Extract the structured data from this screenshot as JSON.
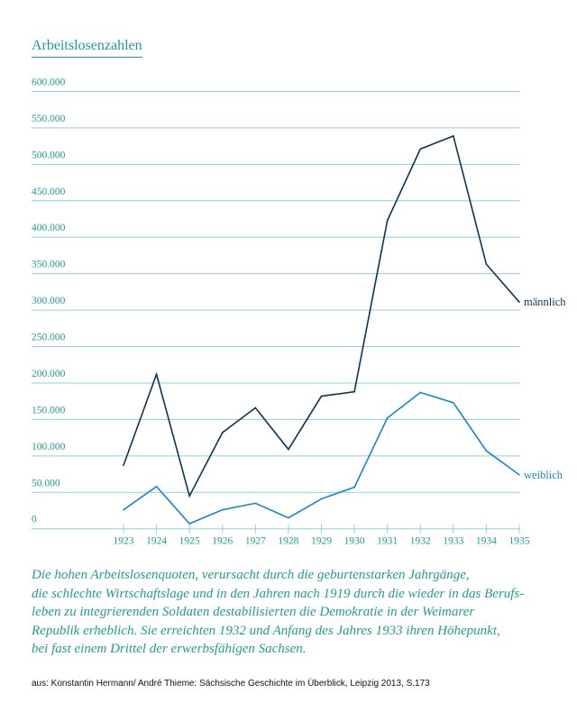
{
  "chart_data": {
    "type": "line",
    "title": "Arbeitslosenzahlen",
    "xlabel": "",
    "ylabel": "",
    "x": [
      1923,
      1924,
      1925,
      1926,
      1927,
      1928,
      1929,
      1930,
      1931,
      1932,
      1933,
      1934,
      1935
    ],
    "ylim": [
      0,
      600000
    ],
    "yticks": [
      0,
      50000,
      100000,
      150000,
      200000,
      250000,
      300000,
      350000,
      400000,
      450000,
      500000,
      550000,
      600000
    ],
    "ytick_labels": [
      "0",
      "50.000",
      "100.000",
      "150.000",
      "200.000",
      "250.000",
      "300.000",
      "350.000",
      "400.000",
      "450.000",
      "500.000",
      "550.000",
      "600.000"
    ],
    "grid": true,
    "series": [
      {
        "name": "männlich",
        "color": "#0b3556",
        "values": [
          87000,
          212000,
          45000,
          132000,
          166000,
          109000,
          182000,
          188000,
          423000,
          521000,
          539000,
          363000,
          311000
        ]
      },
      {
        "name": "weiblich",
        "color": "#1985c9",
        "values": [
          26000,
          58000,
          7000,
          26000,
          35000,
          15000,
          41000,
          57000,
          152000,
          187000,
          173000,
          107000,
          74000
        ]
      }
    ],
    "legend_placement": "line-end labels right"
  },
  "colors": {
    "text": "#1f9e8e",
    "grid": "#8fd3cd"
  },
  "caption": {
    "lines": [
      "Die hohen Arbeitslosenquoten, verursacht durch die geburtenstarken Jahrgänge,",
      "die schlechte Wirtschaftslage und in den Jahren nach 1919 durch die wieder in das Berufs-",
      "leben zu integrierenden Soldaten destabilisierten die Demokratie in der Weimarer",
      "Republik erheblich. Sie erreichten 1932 und Anfang des Jahres 1933 ihren Höhepunkt,",
      "bei fast einem Drittel der erwerbsfähigen Sachsen."
    ]
  },
  "source": "aus: Konstantin Hermann/ André Thieme: Sächsische Geschichte im Überblick, Leipzig 2013, S.173"
}
